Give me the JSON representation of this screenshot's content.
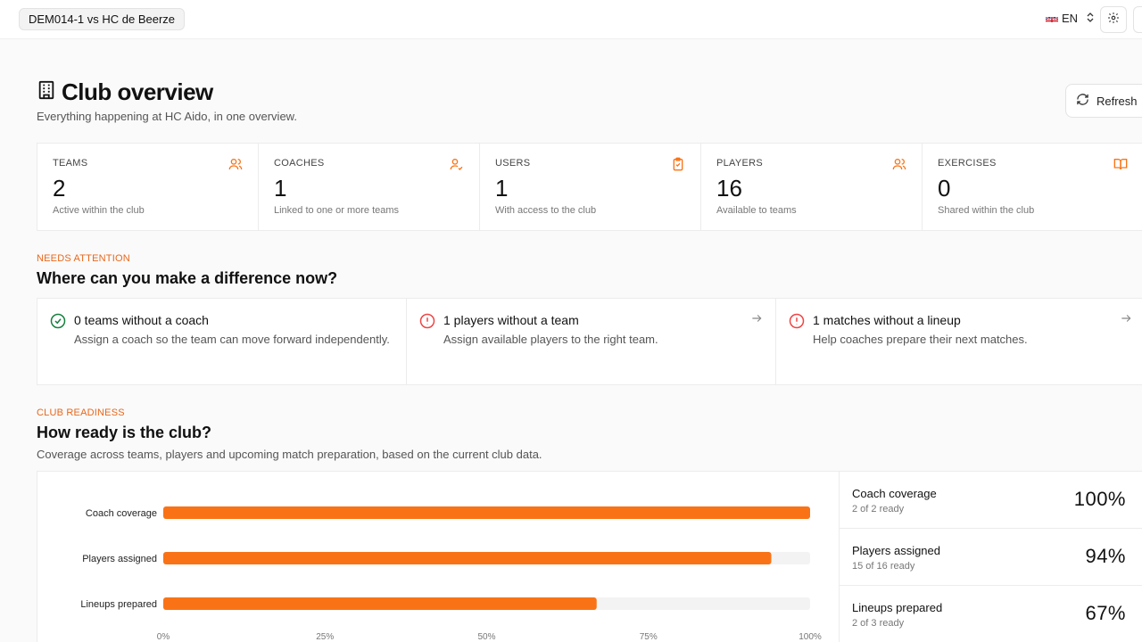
{
  "topbar": {
    "match_label": "DEM014-1 vs HC de Beerze",
    "language": "EN"
  },
  "header": {
    "title": "Club overview",
    "subtitle": "Everything happening at HC Aido, in one overview.",
    "refresh_label": "Refresh"
  },
  "stats": [
    {
      "label": "TEAMS",
      "value": "2",
      "desc": "Active within the club",
      "icon": "users-icon"
    },
    {
      "label": "COACHES",
      "value": "1",
      "desc": "Linked to one or more teams",
      "icon": "user-check-icon"
    },
    {
      "label": "USERS",
      "value": "1",
      "desc": "With access to the club",
      "icon": "clipboard-check-icon"
    },
    {
      "label": "PLAYERS",
      "value": "16",
      "desc": "Available to teams",
      "icon": "users-icon"
    },
    {
      "label": "EXERCISES",
      "value": "0",
      "desc": "Shared within the club",
      "icon": "book-open-icon"
    }
  ],
  "attention": {
    "eyebrow": "NEEDS ATTENTION",
    "title": "Where can you make a difference now?",
    "items": [
      {
        "title": "0 teams without a coach",
        "desc": "Assign a coach so the team can move forward independently.",
        "status": "ok",
        "icon": "check-circle-icon"
      },
      {
        "title": "1 players without a team",
        "desc": "Assign available players to the right team.",
        "status": "warning",
        "icon": "alert-circle-icon"
      },
      {
        "title": "1 matches without a lineup",
        "desc": "Help coaches prepare their next matches.",
        "status": "warning",
        "icon": "alert-circle-icon"
      }
    ]
  },
  "readiness": {
    "eyebrow": "CLUB READINESS",
    "title": "How ready is the club?",
    "subtitle": "Coverage across teams, players and upcoming match preparation, based on the current club data.",
    "rows": [
      {
        "name": "Coach coverage",
        "sub": "2 of 2 ready",
        "pct": "100%"
      },
      {
        "name": "Players assigned",
        "sub": "15 of 16 ready",
        "pct": "94%"
      },
      {
        "name": "Lineups prepared",
        "sub": "2 of 3 ready",
        "pct": "67%"
      }
    ]
  },
  "colors": {
    "accent": "#f97316",
    "eyebrow": "#e8671a",
    "ok": "#15803d",
    "warning": "#ef4444",
    "track": "#f3f3f3"
  },
  "chart_data": {
    "type": "bar",
    "orientation": "horizontal",
    "categories": [
      "Coach coverage",
      "Players assigned",
      "Lineups prepared"
    ],
    "values": [
      100,
      94,
      67
    ],
    "xlim": [
      0,
      100
    ],
    "xticks": [
      "0%",
      "25%",
      "50%",
      "75%",
      "100%"
    ],
    "xtick_values": [
      0,
      25,
      50,
      75,
      100
    ],
    "grid": false,
    "legend": "none"
  }
}
